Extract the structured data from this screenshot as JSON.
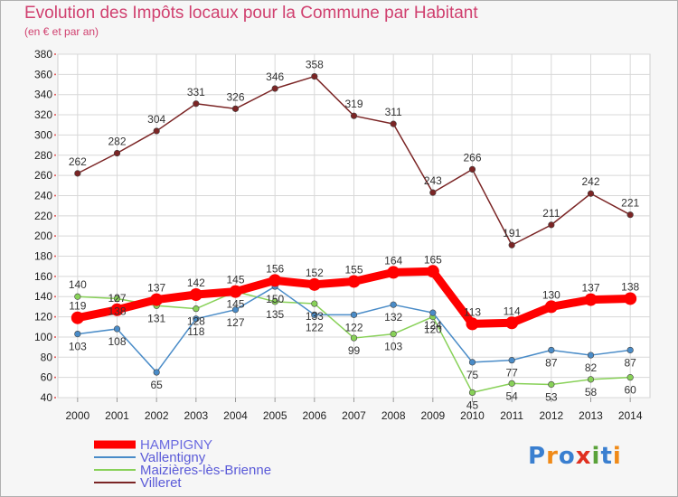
{
  "header": {
    "title": "Evolution des Impôts locaux pour la Commune par Habitant",
    "subtitle": "(en € et par an)"
  },
  "logo": {
    "text": "Proxiti",
    "colors": [
      "#3a7fd0",
      "#f08a18",
      "#3a7fd0",
      "#e03020",
      "#5aa23a",
      "#3a7fd0",
      "#f08a18"
    ]
  },
  "chart_data": {
    "type": "line",
    "title": "Evolution des Impôts locaux pour la Commune par Habitant",
    "subtitle": "(en € et par an)",
    "x": [
      "2000",
      "2001",
      "2002",
      "2003",
      "2004",
      "2005",
      "2006",
      "2007",
      "2008",
      "2009",
      "2010",
      "2011",
      "2012",
      "2013",
      "2014"
    ],
    "ylim": [
      40,
      380
    ],
    "ytick_step": 20,
    "grid": true,
    "legend_position": "bottom-left",
    "series": [
      {
        "name": "HAMPIGNY",
        "color": "#ff0000",
        "values": [
          119,
          127,
          137,
          142,
          145,
          156,
          152,
          155,
          164,
          165,
          113,
          114,
          130,
          137,
          138
        ]
      },
      {
        "name": "Vallentigny",
        "color": "#4a8cc8",
        "values": [
          103,
          108,
          65,
          118,
          127,
          150,
          122,
          122,
          132,
          124,
          75,
          77,
          87,
          82,
          87
        ]
      },
      {
        "name": "Maizières-lès-Brienne",
        "color": "#88d158",
        "values": [
          140,
          138,
          131,
          128,
          145,
          135,
          133,
          99,
          103,
          120,
          45,
          54,
          53,
          58,
          60
        ]
      },
      {
        "name": "Villeret",
        "color": "#7b2525",
        "values": [
          262,
          282,
          304,
          331,
          326,
          346,
          358,
          319,
          311,
          243,
          266,
          191,
          211,
          242,
          221
        ]
      }
    ]
  }
}
